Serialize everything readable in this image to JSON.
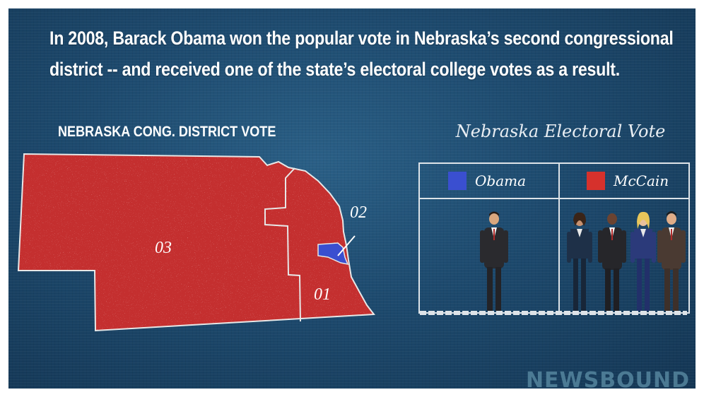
{
  "headline": {
    "line1": "In 2008, Barack Obama won the popular vote in Nebraska’s second congressional",
    "line2": "district -- and received one of the state’s electoral college votes as a result."
  },
  "map": {
    "title": "NEBRASKA CONG. DISTRICT VOTE",
    "districts": [
      {
        "label": "03",
        "winner": "McCain",
        "color": "#c42f2f"
      },
      {
        "label": "02",
        "winner": "Obama",
        "color": "#3a4fd0"
      },
      {
        "label": "01",
        "winner": "McCain",
        "color": "#c42f2f"
      }
    ]
  },
  "electoral": {
    "title": "Nebraska Electoral Vote",
    "candidates": [
      {
        "name": "Obama",
        "color": "#3a4fd0",
        "votes": 1
      },
      {
        "name": "McCain",
        "color": "#d6312c",
        "votes": 4
      }
    ]
  },
  "brand": "NEWSBOUND",
  "colors": {
    "background": "#1d4a6e",
    "mccain_red": "#c42f2f",
    "obama_blue": "#3a4fd0",
    "line": "#dde3e8"
  }
}
